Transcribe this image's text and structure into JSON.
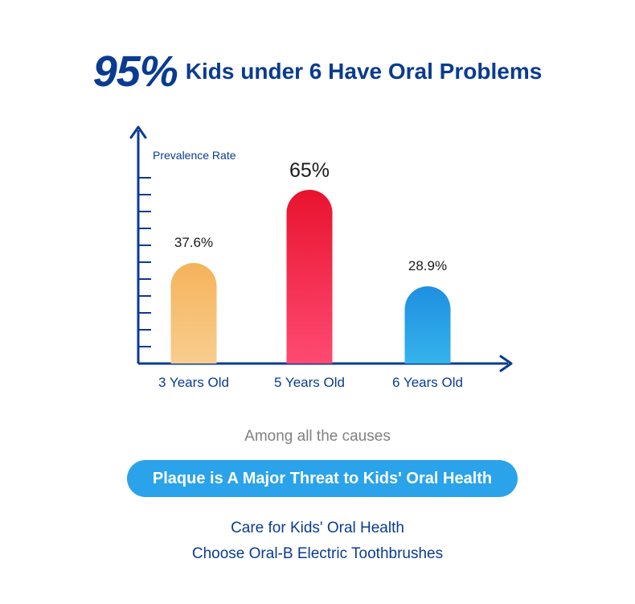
{
  "headline": {
    "big": "95%",
    "rest": "Kids under 6 Have Oral Problems"
  },
  "chart_data": {
    "type": "bar",
    "ylabel": "Prevalence Rate",
    "categories": [
      "3 Years Old",
      "5 Years Old",
      "6 Years Old"
    ],
    "values": [
      37.6,
      65,
      28.9
    ],
    "value_labels": [
      "37.6%",
      "65%",
      "28.9%"
    ],
    "ylim": [
      0,
      100
    ],
    "colors": [
      [
        "#f5b35a",
        "#f8cd8f"
      ],
      [
        "#e8132e",
        "#ff4a72"
      ],
      [
        "#1f8fe0",
        "#35b3ec"
      ]
    ],
    "axis_color": "#0a3b91",
    "grid": false,
    "legend": "none"
  },
  "among": "Among all the causes",
  "pill": "Plaque is A Major Threat to Kids' Oral Health",
  "care_line1": "Care for Kids' Oral Health",
  "care_line2": "Choose Oral-B Electric Toothbrushes"
}
